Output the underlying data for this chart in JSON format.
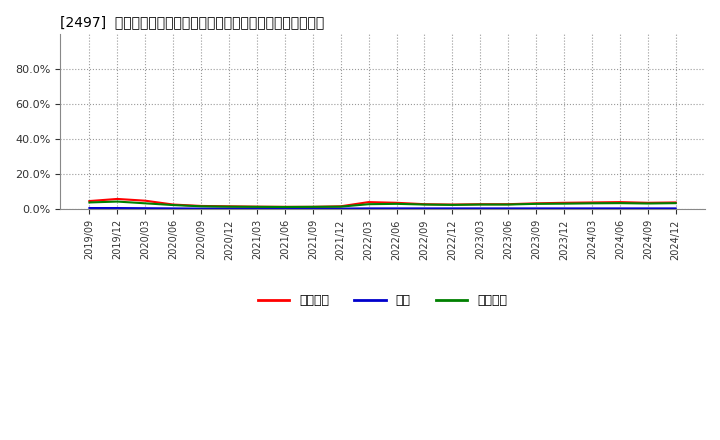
{
  "title": "[2497]  売上債権、在庫、買入債務の総資産に対する比率の推移",
  "x_labels": [
    "2019/09",
    "2019/12",
    "2020/03",
    "2020/06",
    "2020/09",
    "2020/12",
    "2021/03",
    "2021/06",
    "2021/09",
    "2021/12",
    "2022/03",
    "2022/06",
    "2022/09",
    "2022/12",
    "2023/03",
    "2023/06",
    "2023/09",
    "2023/12",
    "2024/03",
    "2024/06",
    "2024/09",
    "2024/12"
  ],
  "売上債権": [
    0.048,
    0.06,
    0.05,
    0.028,
    0.02,
    0.018,
    0.016,
    0.015,
    0.015,
    0.018,
    0.042,
    0.038,
    0.03,
    0.028,
    0.03,
    0.03,
    0.035,
    0.038,
    0.04,
    0.042,
    0.038,
    0.04
  ],
  "在庫": [
    0.008,
    0.008,
    0.007,
    0.006,
    0.005,
    0.005,
    0.005,
    0.005,
    0.005,
    0.005,
    0.006,
    0.006,
    0.006,
    0.006,
    0.006,
    0.006,
    0.006,
    0.006,
    0.006,
    0.006,
    0.006,
    0.006
  ],
  "買入債務": [
    0.04,
    0.045,
    0.035,
    0.025,
    0.018,
    0.016,
    0.015,
    0.014,
    0.015,
    0.016,
    0.03,
    0.032,
    0.028,
    0.026,
    0.028,
    0.028,
    0.032,
    0.033,
    0.035,
    0.036,
    0.034,
    0.036
  ],
  "ylim": [
    0.0,
    1.0
  ],
  "yticks": [
    0.0,
    0.2,
    0.4,
    0.6,
    0.8
  ],
  "legend_labels": [
    "売上債権",
    "在庫",
    "買入債務"
  ],
  "line_colors": [
    "#ff0000",
    "#0000cc",
    "#008000"
  ],
  "background_color": "#ffffff",
  "grid_color": "#999999"
}
